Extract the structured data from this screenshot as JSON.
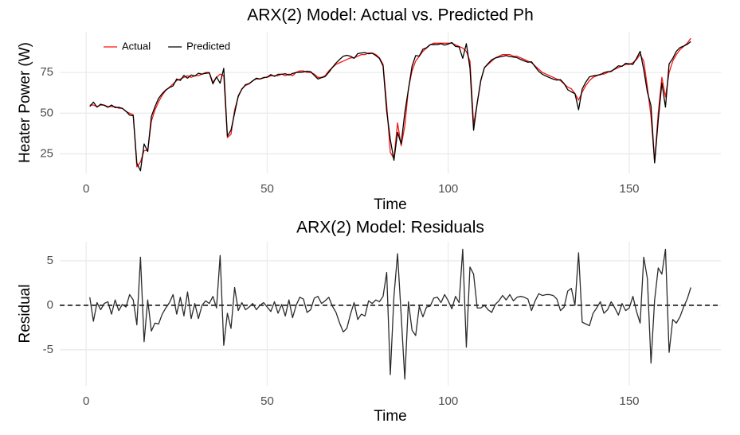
{
  "chart_data": [
    {
      "type": "line",
      "title": "ARX(2) Model: Actual vs. Predicted Ph",
      "x_label": "Time",
      "y_label": "Heater Power (W)",
      "x": [
        1,
        2,
        3,
        4,
        5,
        6,
        7,
        8,
        9,
        10,
        11,
        12,
        13,
        14,
        15,
        16,
        17,
        18,
        19,
        20,
        21,
        22,
        23,
        24,
        25,
        26,
        27,
        28,
        29,
        30,
        31,
        32,
        33,
        34,
        35,
        36,
        37,
        38,
        39,
        40,
        41,
        42,
        43,
        44,
        45,
        46,
        47,
        48,
        49,
        50,
        51,
        52,
        53,
        54,
        55,
        56,
        57,
        58,
        59,
        60,
        61,
        62,
        63,
        64,
        65,
        66,
        67,
        68,
        69,
        70,
        71,
        72,
        73,
        74,
        75,
        76,
        77,
        78,
        79,
        80,
        81,
        82,
        83,
        84,
        85,
        86,
        87,
        88,
        89,
        90,
        91,
        92,
        93,
        94,
        95,
        96,
        97,
        98,
        99,
        100,
        101,
        102,
        103,
        104,
        105,
        106,
        107,
        108,
        109,
        110,
        111,
        112,
        113,
        114,
        115,
        116,
        117,
        118,
        119,
        120,
        121,
        122,
        123,
        124,
        125,
        126,
        127,
        128,
        129,
        130,
        131,
        132,
        133,
        134,
        135,
        136,
        137,
        138,
        139,
        140,
        141,
        142,
        143,
        144,
        145,
        146,
        147,
        148,
        149,
        150,
        151,
        152,
        153,
        154,
        155,
        156,
        157,
        158,
        159,
        160,
        161,
        162,
        163,
        164,
        165,
        166,
        167
      ],
      "series": [
        {
          "name": "Actual",
          "color": "#f8130f",
          "values": [
            55,
            55,
            54,
            55,
            55,
            54,
            54,
            54,
            53,
            53,
            51,
            50,
            49,
            17,
            20,
            27,
            27,
            45,
            52,
            57,
            61,
            64,
            66,
            68,
            70,
            71,
            72,
            73,
            72,
            73,
            73,
            74,
            75,
            75,
            69,
            72,
            74,
            73,
            35,
            37,
            52,
            60,
            65,
            67,
            68,
            70,
            71,
            71,
            72,
            72,
            73,
            73,
            73,
            74,
            73,
            74,
            73,
            75,
            76,
            76,
            75,
            75,
            74,
            72,
            72,
            73,
            76,
            78,
            80,
            81,
            82,
            83,
            84,
            84,
            85,
            86,
            86,
            87,
            87,
            86,
            84,
            80,
            55,
            26,
            22,
            44,
            30,
            42,
            65,
            76,
            82,
            85,
            88,
            90,
            92,
            93,
            93,
            93,
            93,
            93,
            93,
            92,
            91,
            90,
            88,
            82,
            43,
            56,
            70,
            78,
            80,
            82,
            84,
            85,
            86,
            86,
            86,
            85,
            85,
            84,
            83,
            82,
            81,
            79,
            77,
            75,
            74,
            73,
            72,
            71,
            70,
            68,
            66,
            65,
            62,
            58,
            63,
            67,
            70,
            72,
            73,
            74,
            74,
            75,
            76,
            77,
            78,
            79,
            80,
            80,
            81,
            83,
            86,
            82,
            66,
            48,
            20,
            50,
            72,
            60,
            75,
            82,
            86,
            89,
            91,
            93,
            96
          ]
        },
        {
          "name": "Predicted",
          "color": "#000000",
          "values": [
            54.1,
            56.8,
            53.7,
            55.5,
            54.8,
            53.6,
            55.0,
            53.4,
            53.6,
            52.9,
            51.2,
            48.8,
            48.4,
            19.2,
            14.6,
            31.1,
            26.4,
            47.9,
            54.0,
            59.1,
            62.0,
            64.3,
            65.7,
            66.8,
            71.0,
            70.1,
            73.2,
            71.5,
            73.5,
            72.8,
            74.5,
            74.0,
            74.5,
            74.8,
            68.0,
            72.3,
            68.4,
            77.5,
            35.9,
            39.6,
            50.0,
            60.6,
            64.7,
            67.5,
            68.2,
            69.8,
            71.5,
            71.0,
            71.7,
            72.2,
            73.7,
            72.6,
            73.9,
            73.9,
            74.2,
            73.4,
            74.4,
            75.0,
            75.1,
            75.3,
            75.8,
            75.5,
            73.2,
            71.0,
            71.8,
            72.5,
            75.1,
            78.1,
            80.8,
            83.0,
            85.0,
            85.6,
            85.0,
            83.7,
            86.6,
            87.0,
            87.2,
            86.5,
            86.8,
            85.4,
            83.6,
            79.0,
            51.3,
            33.8,
            21.0,
            38.2,
            31.1,
            50.3,
            64.6,
            78.8,
            85.4,
            85.1,
            89.3,
            90.2,
            92.1,
            92.2,
            92.1,
            92.7,
            91.8,
            92.5,
            93.4,
            91.0,
            90.7,
            83.7,
            92.7,
            77.7,
            39.5,
            56.3,
            70.3,
            78.0,
            80.5,
            82.8,
            83.9,
            84.5,
            84.9,
            85.4,
            84.8,
            84.5,
            84.1,
            83.0,
            82.1,
            81.3,
            81.6,
            78.5,
            75.7,
            73.9,
            72.8,
            71.8,
            70.9,
            70.3,
            70.6,
            68.2,
            64.4,
            63.1,
            62.0,
            52.1,
            64.9,
            69.1,
            72.3,
            72.9,
            73.3,
            73.6,
            74.9,
            75.5,
            75.6,
            77.3,
            79.1,
            78.8,
            80.6,
            80.3,
            80.0,
            83.7,
            88.0,
            76.6,
            63.0,
            54.5,
            19.4,
            45.8,
            68.5,
            53.7,
            80.3,
            83.6,
            88.0,
            90.3,
            91.2,
            92.3,
            94.0
          ]
        }
      ],
      "xlim": [
        -7.3,
        175.3
      ],
      "xticks": [
        0,
        50,
        100,
        150
      ],
      "ylim": [
        13,
        100
      ],
      "yticks": [
        25,
        50,
        75
      ],
      "grid": true,
      "legend": "top-left"
    },
    {
      "type": "line",
      "title": "ARX(2) Model: Residuals",
      "x_label": "Time",
      "y_label": "Residual",
      "x": [
        1,
        2,
        3,
        4,
        5,
        6,
        7,
        8,
        9,
        10,
        11,
        12,
        13,
        14,
        15,
        16,
        17,
        18,
        19,
        20,
        21,
        22,
        23,
        24,
        25,
        26,
        27,
        28,
        29,
        30,
        31,
        32,
        33,
        34,
        35,
        36,
        37,
        38,
        39,
        40,
        41,
        42,
        43,
        44,
        45,
        46,
        47,
        48,
        49,
        50,
        51,
        52,
        53,
        54,
        55,
        56,
        57,
        58,
        59,
        60,
        61,
        62,
        63,
        64,
        65,
        66,
        67,
        68,
        69,
        70,
        71,
        72,
        73,
        74,
        75,
        76,
        77,
        78,
        79,
        80,
        81,
        82,
        83,
        84,
        85,
        86,
        87,
        88,
        89,
        90,
        91,
        92,
        93,
        94,
        95,
        96,
        97,
        98,
        99,
        100,
        101,
        102,
        103,
        104,
        105,
        106,
        107,
        108,
        109,
        110,
        111,
        112,
        113,
        114,
        115,
        116,
        117,
        118,
        119,
        120,
        121,
        122,
        123,
        124,
        125,
        126,
        127,
        128,
        129,
        130,
        131,
        132,
        133,
        134,
        135,
        136,
        137,
        138,
        139,
        140,
        141,
        142,
        143,
        144,
        145,
        146,
        147,
        148,
        149,
        150,
        151,
        152,
        153,
        154,
        155,
        156,
        157,
        158,
        159,
        160,
        161,
        162,
        163,
        164,
        165,
        166,
        167
      ],
      "series": [
        {
          "name": "Residual",
          "color": "#2b2b2b",
          "values": [
            0.9,
            -1.8,
            0.3,
            -0.5,
            0.2,
            0.4,
            -1.0,
            0.6,
            -0.6,
            0.1,
            -0.2,
            1.2,
            0.6,
            -2.2,
            5.4,
            -4.1,
            0.6,
            -2.9,
            -2.0,
            -2.1,
            -1.0,
            -0.3,
            0.3,
            1.2,
            -1.0,
            0.9,
            -1.2,
            1.5,
            -1.5,
            0.2,
            -1.5,
            0.0,
            0.5,
            0.2,
            1.0,
            -0.3,
            5.6,
            -4.5,
            -0.9,
            -2.6,
            2.0,
            -0.6,
            0.3,
            -0.5,
            -0.2,
            0.2,
            -0.5,
            0.0,
            0.3,
            -0.2,
            -0.7,
            0.4,
            -0.9,
            0.1,
            -1.2,
            0.6,
            -1.4,
            0.0,
            0.9,
            0.7,
            -0.8,
            -0.5,
            0.8,
            1.0,
            0.2,
            0.5,
            0.9,
            -0.1,
            -0.8,
            -2.0,
            -3.0,
            -2.6,
            -1.0,
            0.3,
            -1.6,
            -1.0,
            -1.2,
            0.5,
            0.2,
            0.6,
            0.4,
            1.0,
            3.7,
            -7.8,
            1.0,
            5.8,
            -1.1,
            -8.3,
            0.4,
            -2.8,
            -3.4,
            -0.1,
            -1.3,
            -0.2,
            -0.1,
            0.8,
            0.9,
            0.3,
            1.2,
            0.5,
            -0.4,
            1.0,
            0.3,
            6.3,
            -4.7,
            4.3,
            3.5,
            -0.3,
            -0.3,
            0.0,
            -0.5,
            -0.8,
            0.1,
            0.5,
            1.1,
            0.6,
            1.2,
            0.5,
            0.9,
            1.0,
            0.9,
            0.7,
            -0.6,
            0.5,
            1.3,
            1.1,
            1.2,
            1.2,
            1.1,
            0.7,
            -0.6,
            -0.2,
            1.6,
            1.9,
            0.0,
            5.9,
            -1.9,
            -2.1,
            -2.3,
            -0.9,
            -0.3,
            0.4,
            -0.9,
            -0.5,
            0.4,
            -0.3,
            -1.1,
            0.2,
            -0.6,
            -0.3,
            1.0,
            -0.7,
            -2.0,
            5.4,
            3.0,
            -6.5,
            0.6,
            4.2,
            3.5,
            6.3,
            -5.3,
            -1.6,
            -2.0,
            -1.3,
            -0.2,
            0.7,
            2.0
          ]
        }
      ],
      "xlim": [
        -7.3,
        175.3
      ],
      "xticks": [
        0,
        50,
        100,
        150
      ],
      "ylim": [
        -9.04,
        7.14
      ],
      "yticks": [
        -5,
        0,
        5
      ],
      "grid": true,
      "hline": 0
    }
  ]
}
